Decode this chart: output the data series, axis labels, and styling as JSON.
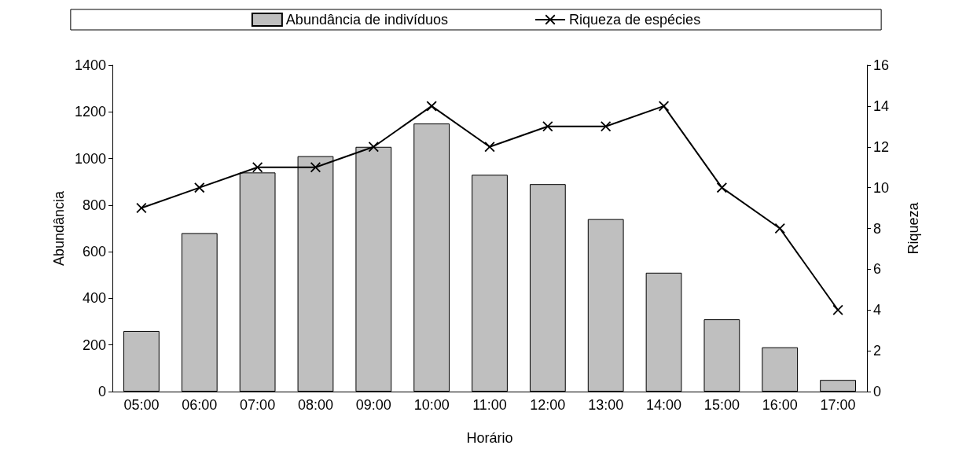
{
  "chart_data": {
    "type": "bar",
    "xlabel": "Horário",
    "ylabel": "Abundância",
    "y2label": "Riqueza",
    "categories": [
      "05:00",
      "06:00",
      "07:00",
      "08:00",
      "09:00",
      "10:00",
      "11:00",
      "12:00",
      "13:00",
      "14:00",
      "15:00",
      "16:00",
      "17:00"
    ],
    "series": [
      {
        "name": "Abundância de indivíduos",
        "color": "#bfbfbf",
        "values": [
          260,
          680,
          940,
          1010,
          1050,
          1150,
          930,
          890,
          740,
          510,
          310,
          190,
          50
        ]
      },
      {
        "name": "Riqueza de espécies",
        "type": "line",
        "axis": "y2",
        "color": "#000000",
        "marker": "cross",
        "values": [
          9,
          10,
          11,
          11,
          12,
          14,
          12,
          13,
          13,
          14,
          10,
          8,
          4
        ]
      }
    ],
    "ylim": [
      0,
      1400
    ],
    "yticks": [
      0,
      200,
      400,
      600,
      800,
      1000,
      1200,
      1400
    ],
    "y2lim": [
      0,
      16
    ],
    "y2ticks": [
      0,
      2,
      4,
      6,
      8,
      10,
      12,
      14,
      16
    ],
    "grid": false,
    "legend": "top"
  }
}
